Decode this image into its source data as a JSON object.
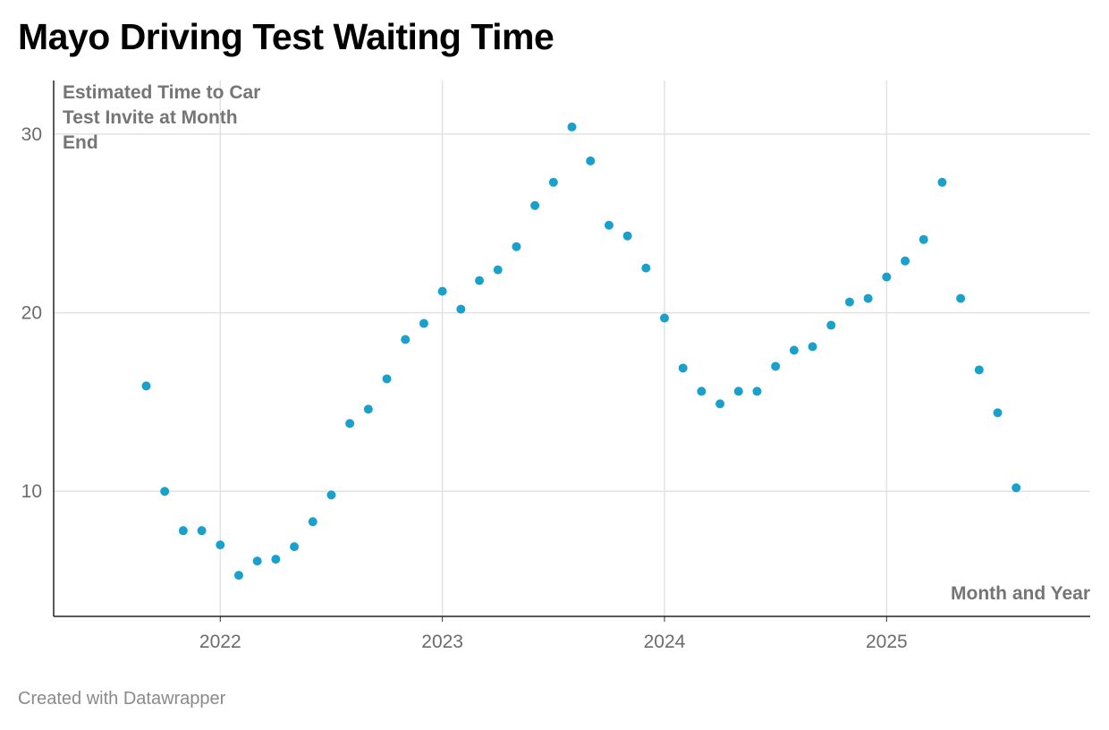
{
  "header": {
    "title": "Mayo Driving Test Waiting Time"
  },
  "footer": {
    "credit": "Created with Datawrapper"
  },
  "chart_data": {
    "type": "scatter",
    "title": "Mayo Driving Test Waiting Time",
    "ylabel": "Estimated Time to Car Test Invite at Month End",
    "xlabel": "Month and Year",
    "ylim": [
      3,
      33
    ],
    "xlim": [
      "2021-04",
      "2025-12"
    ],
    "yticks": [
      10,
      20,
      30
    ],
    "xticks": [
      "2022",
      "2023",
      "2024",
      "2025"
    ],
    "grid": true,
    "point_color": "#18a1cd",
    "x": [
      "2021-09",
      "2021-10",
      "2021-11",
      "2021-12",
      "2022-01",
      "2022-02",
      "2022-03",
      "2022-04",
      "2022-05",
      "2022-06",
      "2022-07",
      "2022-08",
      "2022-09",
      "2022-10",
      "2022-11",
      "2022-12",
      "2023-01",
      "2023-02",
      "2023-03",
      "2023-04",
      "2023-05",
      "2023-06",
      "2023-07",
      "2023-08",
      "2023-09",
      "2023-10",
      "2023-11",
      "2023-12",
      "2024-01",
      "2024-02",
      "2024-03",
      "2024-04",
      "2024-05",
      "2024-06",
      "2024-07",
      "2024-08",
      "2024-09",
      "2024-10",
      "2024-11",
      "2024-12",
      "2025-01",
      "2025-02",
      "2025-03",
      "2025-04",
      "2025-05",
      "2025-06",
      "2025-07",
      "2025-08"
    ],
    "y": [
      15.9,
      10.0,
      7.8,
      7.8,
      7.0,
      5.3,
      6.1,
      6.2,
      6.9,
      8.3,
      9.8,
      13.8,
      14.6,
      16.3,
      18.5,
      19.4,
      21.2,
      20.2,
      21.8,
      22.4,
      23.7,
      26.0,
      27.3,
      30.4,
      28.5,
      24.9,
      24.3,
      22.5,
      19.7,
      16.9,
      15.6,
      14.9,
      15.6,
      15.6,
      17.0,
      17.9,
      18.1,
      19.3,
      20.6,
      20.8,
      22.0,
      22.9,
      24.1,
      27.3,
      20.8,
      16.8,
      14.4,
      10.2
    ]
  }
}
